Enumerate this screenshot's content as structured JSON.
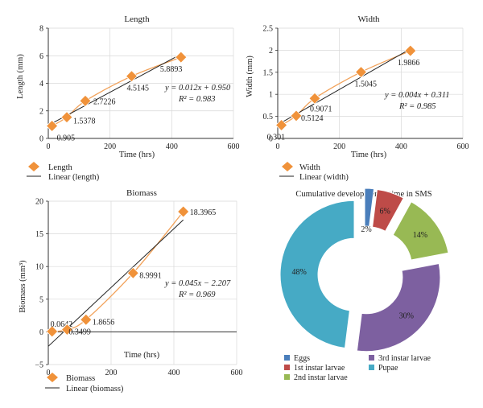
{
  "colors": {
    "marker": "#f0923a",
    "marker_stroke": "#ffffff",
    "curve": "#f2a25a",
    "fit_line": "#222222",
    "axis": "#333333",
    "grid": "#d8d8d8"
  },
  "chart_data": [
    {
      "id": "length",
      "type": "scatter",
      "title": "Length",
      "xlabel": "Time (hrs)",
      "ylabel": "Length (mm)",
      "xlim": [
        0,
        600
      ],
      "ylim": [
        0,
        8
      ],
      "xticks": [
        "0",
        "200",
        "400",
        "600"
      ],
      "yticks": [
        "0",
        "2",
        "4",
        "6",
        "8"
      ],
      "x": [
        12,
        60,
        120,
        270,
        430
      ],
      "y": [
        0.905,
        1.5378,
        2.7226,
        4.5145,
        5.8893
      ],
      "point_labels": [
        "0.905",
        "1.5378",
        "2.7226",
        "4.5145",
        "5.8893"
      ],
      "fit": {
        "slope": 0.012,
        "intercept": 0.95,
        "x_range": [
          0,
          430
        ]
      },
      "equation": "y = 0.012x + 0.950",
      "r2": "R² = 0.983",
      "grid": true,
      "legend": [
        "Length",
        "Linear (length)"
      ]
    },
    {
      "id": "width",
      "type": "scatter",
      "title": "Width",
      "xlabel": "Time (hrs)",
      "ylabel": "Width (mm)",
      "xlim": [
        0,
        600
      ],
      "ylim": [
        0,
        2.5
      ],
      "xticks": [
        "0",
        "200",
        "400",
        "600"
      ],
      "yticks": [
        "0",
        "0.5",
        "1",
        "1.5",
        "2",
        "2.5"
      ],
      "x": [
        12,
        60,
        120,
        270,
        430
      ],
      "y": [
        0.301,
        0.5124,
        0.9071,
        1.5045,
        1.9866
      ],
      "point_labels": [
        "0.301",
        "0.5124",
        "0.9071",
        "1.5045",
        "1.9866"
      ],
      "fit": {
        "slope": 0.004,
        "intercept": 0.311,
        "x_range": [
          0,
          430
        ]
      },
      "equation": "y = 0.004x + 0.311",
      "r2": "R² = 0.985",
      "grid": true,
      "legend": [
        "Width",
        "Linear (width)"
      ]
    },
    {
      "id": "biomass",
      "type": "scatter",
      "title": "Biomass",
      "xlabel": "Time (hrs)",
      "ylabel": "Biomass (mm³)",
      "xlim": [
        0,
        600
      ],
      "ylim": [
        -5,
        20
      ],
      "xticks": [
        "0",
        "200",
        "400",
        "600"
      ],
      "yticks": [
        "−5",
        "0",
        "5",
        "10",
        "15",
        "20"
      ],
      "x": [
        12,
        60,
        120,
        270,
        430
      ],
      "y": [
        0.0642,
        0.3499,
        1.8656,
        8.9991,
        18.3965
      ],
      "point_labels": [
        "0.0642",
        "0.3499",
        "1.8656",
        "8.9991",
        "18.3965"
      ],
      "fit": {
        "slope": 0.045,
        "intercept": -2.207,
        "x_range": [
          0,
          430
        ]
      },
      "equation": "y = 0.045x − 2.207",
      "r2": "R² = 0.969",
      "grid": true,
      "legend": [
        "Biomass",
        "Linear (biomass)"
      ]
    },
    {
      "id": "cumulative",
      "type": "pie",
      "variant": "exploded-donut",
      "title": "Cumulative developmental time in SMS",
      "categories": [
        "Eggs",
        "1st instar larvae",
        "2nd instar larvae",
        "3rd instar larvae",
        "Pupae"
      ],
      "values": [
        2,
        6,
        14,
        30,
        48
      ],
      "labels": [
        "2%",
        "6%",
        "14%",
        "30%",
        "48%"
      ],
      "colors": [
        "#4a7ebb",
        "#be4b48",
        "#98b954",
        "#7d60a0",
        "#46aac5"
      ]
    }
  ]
}
